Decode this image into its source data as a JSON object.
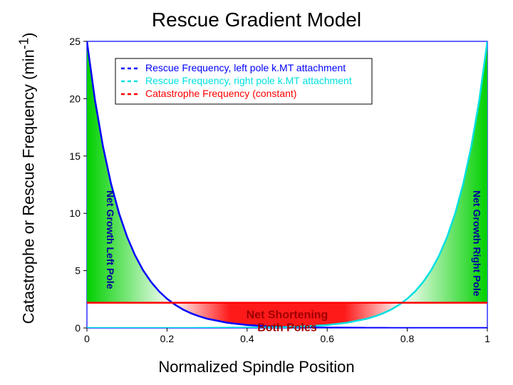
{
  "title": "Rescue Gradient Model",
  "ylabel_pre": "Catastrophe or Rescue Frequency (min",
  "ylabel_sup": "-1",
  "ylabel_post": ")",
  "xlabel": "Normalized Spindle Position",
  "chart": {
    "type": "line",
    "background_color": "#ffffff",
    "axis_color": "#000000",
    "xlim": [
      0,
      1
    ],
    "ylim": [
      0,
      25
    ],
    "xticks": [
      0,
      0.2,
      0.4,
      0.6,
      0.8,
      1
    ],
    "yticks": [
      0,
      5,
      10,
      15,
      20,
      25
    ],
    "tick_fontsize": 14,
    "data_x": [
      0.0,
      0.02,
      0.04,
      0.06,
      0.08,
      0.1,
      0.12,
      0.14,
      0.16,
      0.18,
      0.2,
      0.22,
      0.24,
      0.26,
      0.28,
      0.3,
      0.35,
      0.4,
      0.45,
      0.5,
      0.55,
      0.6,
      0.65,
      0.7,
      0.72,
      0.74,
      0.76,
      0.78,
      0.8,
      0.82,
      0.84,
      0.86,
      0.88,
      0.9,
      0.92,
      0.94,
      0.96,
      0.98,
      1.0
    ],
    "left_curve_y": [
      25,
      19.9,
      15.85,
      12.61,
      10.03,
      7.98,
      6.35,
      5.05,
      4.02,
      3.2,
      2.55,
      2.03,
      1.61,
      1.28,
      1.02,
      0.81,
      0.46,
      0.26,
      0.15,
      0.08,
      0.05,
      0.03,
      0.02,
      0.01,
      0.01,
      0.01,
      0.0,
      0.0,
      0.0,
      0.0,
      0.0,
      0.0,
      0.0,
      0.0,
      0.0,
      0.0,
      0.0,
      0.0,
      0.0
    ],
    "right_curve_y": [
      0.0,
      0.0,
      0.0,
      0.0,
      0.0,
      0.0,
      0.0,
      0.0,
      0.0,
      0.0,
      0.0,
      0.0,
      0.0,
      0.0,
      0.01,
      0.01,
      0.02,
      0.03,
      0.05,
      0.08,
      0.15,
      0.26,
      0.46,
      0.81,
      1.02,
      1.28,
      1.61,
      2.03,
      2.55,
      3.2,
      4.02,
      5.05,
      6.35,
      7.98,
      10.03,
      12.61,
      15.85,
      19.9,
      25
    ],
    "cat_const": 2.2,
    "left_color": "#0000ff",
    "right_color": "#00e0e0",
    "cat_color": "#ff0000",
    "line_width": 2.5,
    "fill_green": "#00d000",
    "fill_red": "#ff0000",
    "gradient_fade": "#ffffff"
  },
  "legend": {
    "items": [
      {
        "label": "Rescue Frequency, left pole k.MT attachment",
        "color": "#0000ff"
      },
      {
        "label": "Rescue Frequency, right pole k.MT attachment",
        "color": "#00e0e0"
      },
      {
        "label": "Catastrophe Frequency (constant)",
        "color": "#ff0000"
      }
    ],
    "fontsize": 14,
    "border": "#000000"
  },
  "annotations": {
    "left_vert": {
      "text": "Net Growth Left Pole",
      "color": "#0000a0"
    },
    "right_vert": {
      "text": "Net Growth Right Pole",
      "color": "#0000a0"
    },
    "center_line1": "Net Shortening",
    "center_line2": "Both Poles",
    "center_color": "#a00000"
  }
}
